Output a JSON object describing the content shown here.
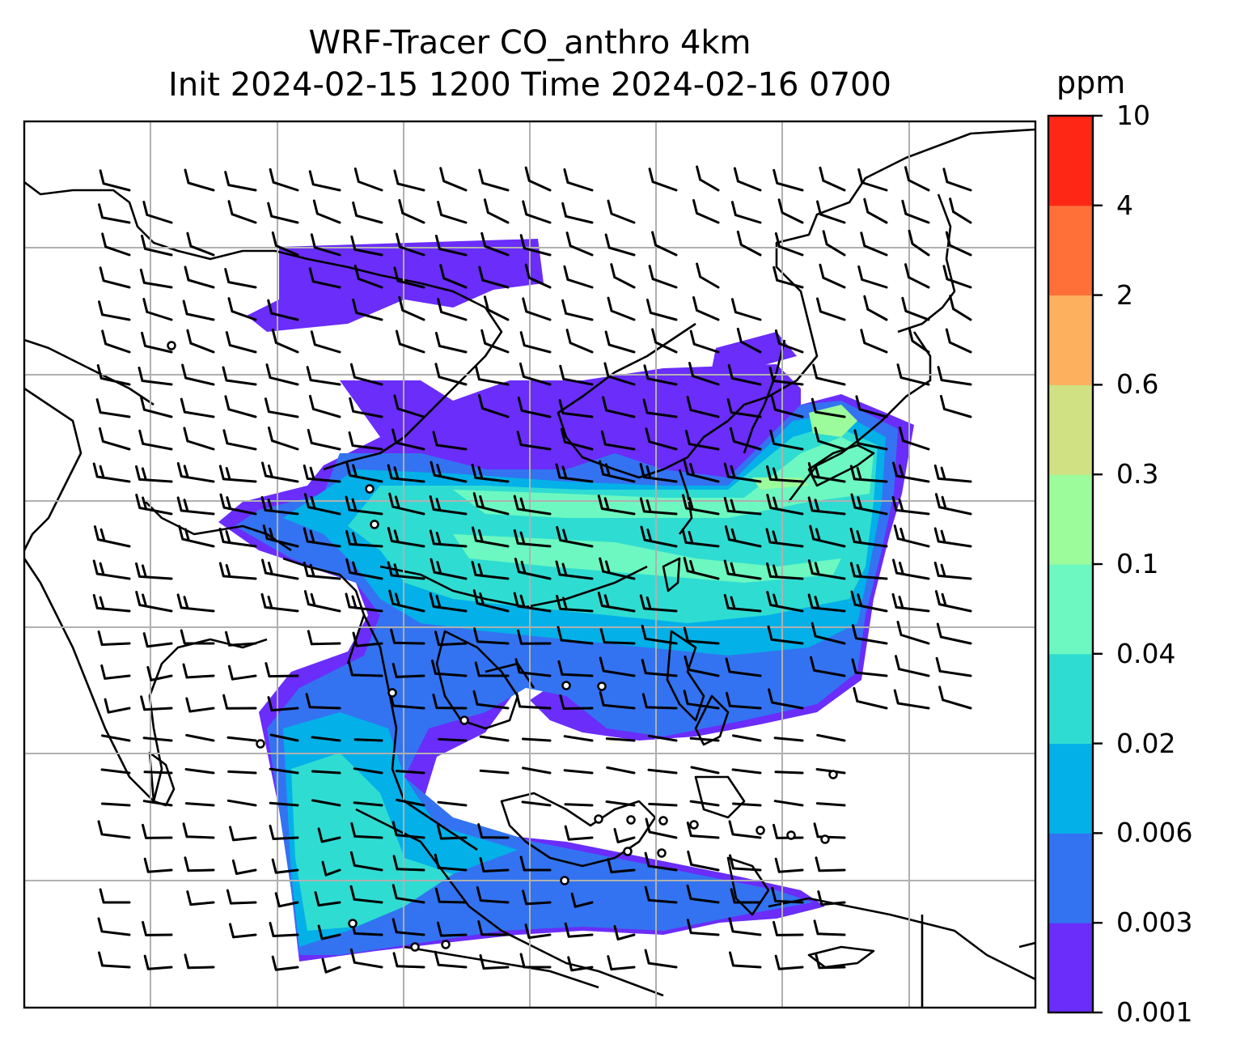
{
  "title": {
    "line1": "WRF-Tracer CO_anthro 4km",
    "line2": "Init 2024-02-15 1200 Time 2024-02-16 0700"
  },
  "colorbar": {
    "label": "ppm",
    "ticks": [
      "0.001",
      "0.003",
      "0.006",
      "0.02",
      "0.04",
      "0.1",
      "0.3",
      "0.6",
      "2",
      "4",
      "10"
    ],
    "colors": [
      "#6a2dfa",
      "#3373f1",
      "#03b0e8",
      "#2fdcd2",
      "#6cf8c0",
      "#9cfb9a",
      "#cfe183",
      "#fdb05e",
      "#fe7038",
      "#fe2716"
    ]
  }
}
